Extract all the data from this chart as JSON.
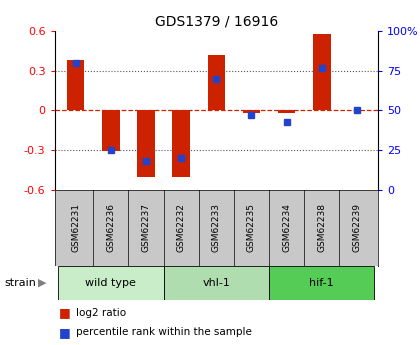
{
  "title": "GDS1379 / 16916",
  "samples": [
    "GSM62231",
    "GSM62236",
    "GSM62237",
    "GSM62232",
    "GSM62233",
    "GSM62235",
    "GSM62234",
    "GSM62238",
    "GSM62239"
  ],
  "log2_ratio": [
    0.38,
    -0.31,
    -0.5,
    -0.5,
    0.42,
    -0.02,
    -0.02,
    0.58,
    0.0
  ],
  "percentile_rank": [
    80,
    25,
    18,
    20,
    70,
    47,
    43,
    77,
    50
  ],
  "groups": [
    {
      "label": "wild type",
      "start": 0,
      "end": 3,
      "color": "#c8edc8"
    },
    {
      "label": "vhl-1",
      "start": 3,
      "end": 6,
      "color": "#b0ddb0"
    },
    {
      "label": "hif-1",
      "start": 6,
      "end": 9,
      "color": "#55cc55"
    }
  ],
  "ylim_left": [
    -0.6,
    0.6
  ],
  "ylim_right": [
    0,
    100
  ],
  "bar_color": "#cc2200",
  "dot_color": "#2244cc",
  "zero_line_color": "#cc2200",
  "grid_color": "#555555",
  "bg_color": "#ffffff",
  "sample_bg_color": "#c8c8c8",
  "bar_width": 0.5,
  "legend_red_label": "log2 ratio",
  "legend_blue_label": "percentile rank within the sample",
  "strain_label": "strain",
  "yticks_left": [
    -0.6,
    -0.3,
    0,
    0.3,
    0.6
  ],
  "yticks_right": [
    0,
    25,
    50,
    75,
    100
  ]
}
